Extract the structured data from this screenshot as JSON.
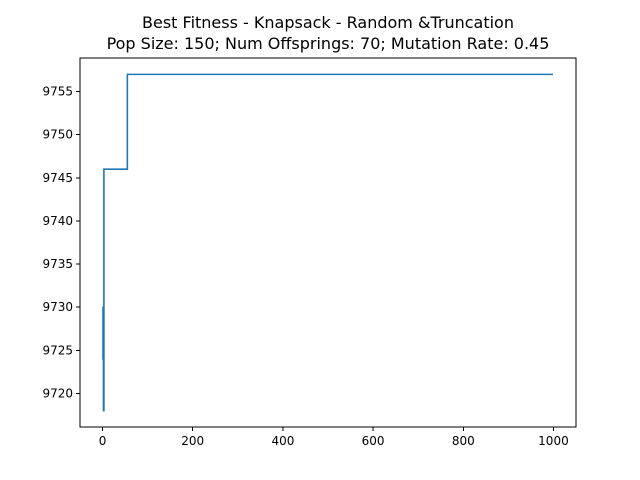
{
  "chart_data": {
    "type": "line",
    "title": "Best Fitness - Knapsack - Random &Truncation",
    "subtitle": "Pop Size: 150; Num Offsprings: 70; Mutation Rate: 0.45",
    "xlabel": "",
    "ylabel": "",
    "xlim": [
      -50,
      1050
    ],
    "ylim": [
      9716.1,
      9758.9
    ],
    "xticks": [
      0,
      200,
      400,
      600,
      800,
      1000
    ],
    "yticks": [
      9720,
      9725,
      9730,
      9735,
      9740,
      9745,
      9750,
      9755
    ],
    "xtick_labels": [
      "0",
      "200",
      "400",
      "600",
      "800",
      "1000"
    ],
    "ytick_labels": [
      "9720",
      "9725",
      "9730",
      "9735",
      "9740",
      "9745",
      "9750",
      "9755"
    ],
    "grid": false,
    "series": [
      {
        "color": "#1f77b4",
        "x": [
          0,
          1,
          1,
          2,
          2,
          3,
          3,
          55,
          55,
          999
        ],
        "y": [
          9730,
          9730,
          9724,
          9724,
          9718,
          9718,
          9746,
          9746,
          9757,
          9757
        ]
      }
    ]
  }
}
